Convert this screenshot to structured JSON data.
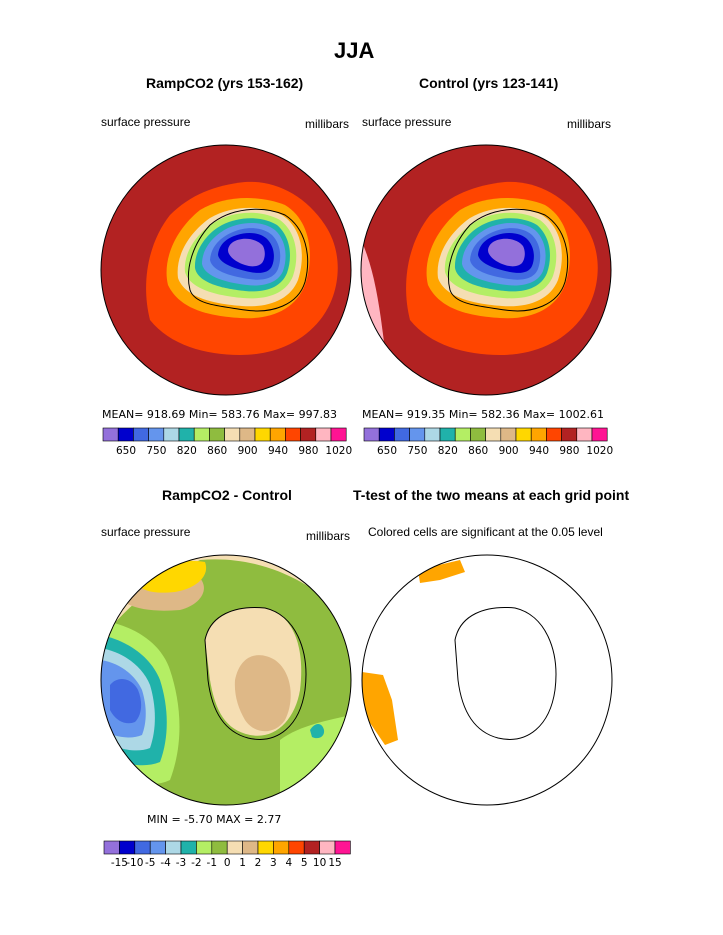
{
  "figure": {
    "title": "JJA"
  },
  "panels": [
    {
      "title": "RampCO2 (yrs 153-162)",
      "left_label": "surface pressure",
      "right_label": "millibars",
      "stats": "MEAN= 918.69   Min= 583.76   Max= 997.83",
      "legend_ticks": [
        "650",
        "750",
        "820",
        "860",
        "900",
        "940",
        "980",
        "1020"
      ]
    },
    {
      "title": "Control (yrs 123-141)",
      "left_label": "surface pressure",
      "right_label": "millibars",
      "stats": "MEAN= 919.35   Min= 582.36   Max= 1002.61",
      "legend_ticks": [
        "650",
        "750",
        "820",
        "860",
        "900",
        "940",
        "980",
        "1020"
      ]
    },
    {
      "title": "RampCO2 - Control",
      "left_label": "surface pressure",
      "right_label": "millibars",
      "stats": "MIN =   -5.70  MAX =    2.77",
      "legend_ticks": [
        "-15",
        "-10",
        "-5",
        "-4",
        "-3",
        "-2",
        "-1",
        "0",
        "1",
        "2",
        "3",
        "4",
        "5",
        "10",
        "15"
      ]
    },
    {
      "title": "T-test of the two means at each grid point",
      "left_label": "Colored cells are significant at the 0.05 level"
    }
  ],
  "colors": {
    "pressure_scale": [
      "#9370db",
      "#0000cd",
      "#4169e1",
      "#6495ed",
      "#add8e6",
      "#20b2aa",
      "#b4ee64",
      "#8fbc3f",
      "#f5deb3",
      "#deb887",
      "#ffd700",
      "#ffa500",
      "#ff4500",
      "#b22222",
      "#ffb6c1",
      "#ff1493"
    ],
    "diff_scale": [
      "#9370db",
      "#0000cd",
      "#4169e1",
      "#6495ed",
      "#add8e6",
      "#20b2aa",
      "#b4ee64",
      "#8fbc3f",
      "#f5deb3",
      "#deb887",
      "#ffd700",
      "#ffa500",
      "#ff4500",
      "#b22222",
      "#ffb6c1",
      "#ff1493"
    ],
    "significant": "#ffa500"
  }
}
